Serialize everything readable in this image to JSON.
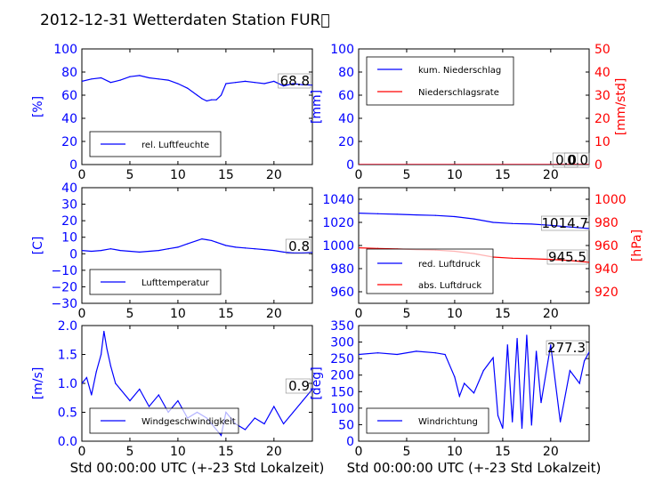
{
  "page_title": "2012-12-31 Wetterdaten Station FUR\u0000",
  "colors": {
    "blue": "#0000ff",
    "red": "#ff0000",
    "black": "#000000"
  },
  "chart_data": [
    {
      "id": "humidity",
      "type": "line",
      "x": [
        0,
        1,
        2,
        3,
        4,
        5,
        6,
        7,
        8,
        9,
        10,
        11,
        12,
        12.5,
        13,
        13.5,
        14,
        14.5,
        15,
        16,
        17,
        18,
        19,
        20,
        21,
        22,
        23,
        24
      ],
      "series": [
        {
          "name": "rel. Luftfeuchte",
          "color": "#0000ff",
          "axis": "left",
          "values": [
            72,
            74,
            75,
            71,
            73,
            76,
            77,
            75,
            74,
            73,
            70,
            66,
            60,
            57,
            55,
            56,
            56,
            60,
            70,
            71,
            72,
            71,
            70,
            72,
            68,
            70,
            69,
            68.8
          ]
        }
      ],
      "xlim": [
        0,
        24
      ],
      "ylim": [
        0,
        100
      ],
      "xticks": [
        "0",
        "5",
        "10",
        "15",
        "20"
      ],
      "yticks": [
        "0",
        "20",
        "40",
        "60",
        "80",
        "100"
      ],
      "ylabel": "[%]",
      "annotations": [
        {
          "text": "68.8",
          "color": "#000000"
        }
      ]
    },
    {
      "id": "precip",
      "type": "line",
      "x": [
        0,
        24
      ],
      "series": [
        {
          "name": "kum. Niederschlag",
          "color": "#0000ff",
          "axis": "left",
          "values": [
            0,
            0
          ]
        },
        {
          "name": "Niederschlagsrate",
          "color": "#ff0000",
          "axis": "right",
          "values": [
            0,
            0
          ]
        }
      ],
      "xlim": [
        0,
        24
      ],
      "ylim": [
        0,
        100
      ],
      "ylim_right": [
        0,
        50
      ],
      "xticks": [
        "0",
        "5",
        "10",
        "15",
        "20"
      ],
      "yticks": [
        "0",
        "20",
        "40",
        "60",
        "80",
        "100"
      ],
      "yticks_right": [
        "0",
        "10",
        "20",
        "30",
        "40",
        "50"
      ],
      "ylabel": "[mm]",
      "ylabel_right": "[mm/std]",
      "annotations": [
        {
          "text": "0.0",
          "color": "#000000"
        },
        {
          "text": "0.0",
          "color": "#000000"
        }
      ]
    },
    {
      "id": "temperature",
      "type": "line",
      "x": [
        0,
        1,
        2,
        3,
        4,
        5,
        6,
        7,
        8,
        9,
        10,
        11,
        12,
        12.5,
        13,
        13.5,
        14,
        15,
        16,
        17,
        18,
        19,
        20,
        21,
        22,
        23,
        24
      ],
      "series": [
        {
          "name": "Lufttemperatur",
          "color": "#0000ff",
          "axis": "left",
          "values": [
            2,
            1.5,
            2,
            3,
            2,
            1.5,
            1,
            1.5,
            2,
            3,
            4,
            6,
            8,
            9,
            8.5,
            8,
            7,
            5,
            4,
            3.5,
            3,
            2.5,
            2,
            1,
            0.5,
            0.5,
            0.8
          ]
        }
      ],
      "xlim": [
        0,
        24
      ],
      "ylim": [
        -30,
        40
      ],
      "xticks": [
        "0",
        "5",
        "10",
        "15",
        "20"
      ],
      "yticks": [
        "−30",
        "−20",
        "−10",
        "0",
        "10",
        "20",
        "30",
        "40"
      ],
      "ylabel": "[C]",
      "annotations": [
        {
          "text": "0.8",
          "color": "#000000"
        }
      ]
    },
    {
      "id": "pressure",
      "type": "line",
      "x": [
        0,
        2,
        4,
        6,
        8,
        10,
        12,
        14,
        16,
        18,
        20,
        22,
        24
      ],
      "series": [
        {
          "name": "red. Luftdruck",
          "color": "#0000ff",
          "axis": "left",
          "values": [
            1028,
            1027.5,
            1027,
            1026.5,
            1026,
            1025,
            1023,
            1020,
            1019,
            1018.5,
            1017.5,
            1016,
            1014.7
          ]
        },
        {
          "name": "abs. Luftdruck",
          "color": "#ff0000",
          "axis": "right",
          "values": [
            958,
            957.5,
            957,
            956.5,
            956,
            955,
            953,
            950,
            949,
            948.5,
            948,
            947,
            945.5
          ]
        }
      ],
      "xlim": [
        0,
        24
      ],
      "ylim": [
        950,
        1050
      ],
      "ylim_right": [
        910,
        1010
      ],
      "xticks": [
        "0",
        "5",
        "10",
        "15",
        "20"
      ],
      "yticks": [
        "960",
        "980",
        "1000",
        "1020",
        "1040"
      ],
      "yticks_right": [
        "920",
        "940",
        "960",
        "980",
        "1000"
      ],
      "ylabel_right": "[hPa]",
      "annotations": [
        {
          "text": "1014.7",
          "color": "#000000"
        },
        {
          "text": "945.5",
          "color": "#000000"
        }
      ]
    },
    {
      "id": "windspeed",
      "type": "line",
      "x": [
        0,
        0.5,
        1,
        1.5,
        2,
        2.3,
        2.6,
        3,
        3.5,
        4,
        5,
        6,
        7,
        8,
        9,
        10,
        11,
        12,
        13,
        14,
        14.5,
        15,
        16,
        17,
        18,
        19,
        20,
        21,
        22,
        23,
        24
      ],
      "series": [
        {
          "name": "Windgeschwindigkeit",
          "color": "#0000ff",
          "axis": "left",
          "values": [
            1.0,
            1.1,
            0.8,
            1.2,
            1.5,
            1.9,
            1.6,
            1.3,
            1.0,
            0.9,
            0.7,
            0.9,
            0.6,
            0.8,
            0.5,
            0.7,
            0.4,
            0.5,
            0.4,
            0.2,
            0.1,
            0.5,
            0.3,
            0.2,
            0.4,
            0.3,
            0.6,
            0.3,
            0.5,
            0.7,
            0.9
          ]
        }
      ],
      "xlim": [
        0,
        24
      ],
      "ylim": [
        0,
        2.0
      ],
      "xticks": [
        "0",
        "5",
        "10",
        "15",
        "20"
      ],
      "yticks": [
        "0.0",
        "0.5",
        "1.0",
        "1.5",
        "2.0"
      ],
      "ylabel": "[m/s]",
      "xlabel": "Std 00:00:00 UTC (+-23 Std Lokalzeit)",
      "annotations": [
        {
          "text": "0.9",
          "color": "#000000"
        }
      ]
    },
    {
      "id": "winddir",
      "type": "line",
      "x": [
        0,
        2,
        4,
        6,
        8,
        9,
        10,
        10.5,
        11,
        12,
        13,
        14,
        14.5,
        15,
        15.5,
        16,
        16.5,
        17,
        17.5,
        18,
        18.5,
        19,
        20,
        21,
        22,
        23,
        23.5,
        24
      ],
      "series": [
        {
          "name": "Windrichtung",
          "color": "#0000ff",
          "axis": "left",
          "values": [
            270,
            275,
            270,
            280,
            275,
            270,
            200,
            140,
            180,
            150,
            220,
            260,
            80,
            40,
            300,
            60,
            320,
            40,
            330,
            50,
            280,
            120,
            300,
            60,
            220,
            180,
            250,
            277.3
          ]
        }
      ],
      "xlim": [
        0,
        24
      ],
      "ylim": [
        0,
        360
      ],
      "xticks": [
        "0",
        "5",
        "10",
        "15",
        "20"
      ],
      "yticks": [
        "0",
        "50",
        "100",
        "150",
        "200",
        "250",
        "300",
        "350"
      ],
      "ylabel": "[deg]",
      "xlabel": "Std 00:00:00 UTC (+-23 Std Lokalzeit)",
      "annotations": [
        {
          "text": "277.3",
          "color": "#000000"
        }
      ]
    }
  ]
}
